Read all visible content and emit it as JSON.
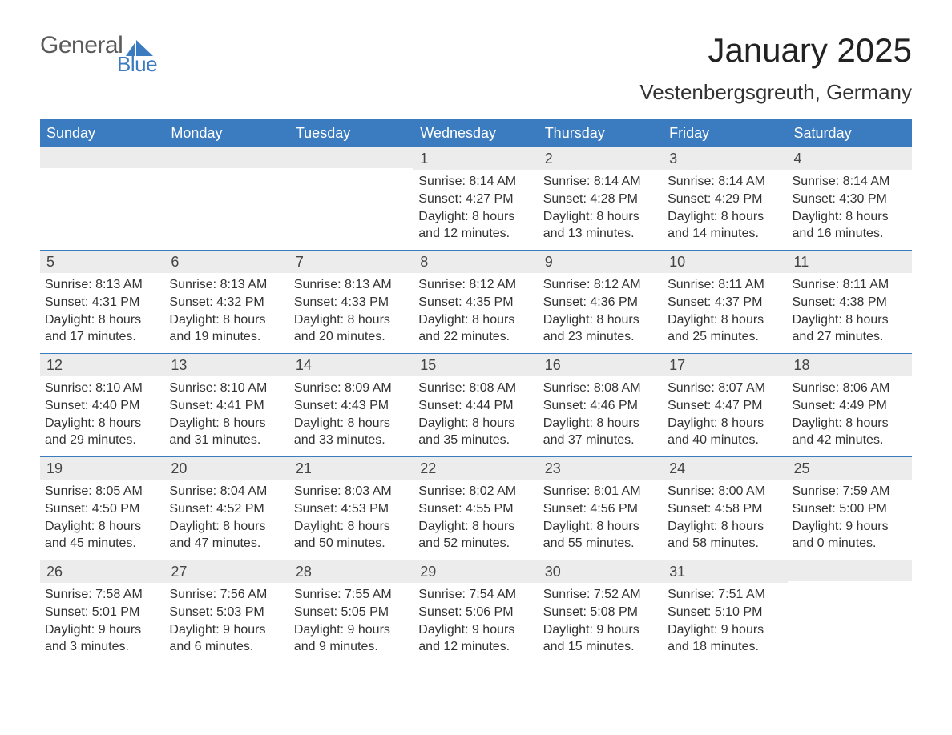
{
  "logo": {
    "text1": "General",
    "text2": "Blue"
  },
  "title": "January 2025",
  "location": "Vestenbergsgreuth, Germany",
  "colors": {
    "header_bg": "#3b7bbf",
    "header_text": "#ffffff",
    "daynum_bg": "#ececec",
    "text": "#333333",
    "border": "#3b7bbf",
    "page_bg": "#ffffff"
  },
  "day_headers": [
    "Sunday",
    "Monday",
    "Tuesday",
    "Wednesday",
    "Thursday",
    "Friday",
    "Saturday"
  ],
  "weeks": [
    [
      {
        "empty": true
      },
      {
        "empty": true
      },
      {
        "empty": true
      },
      {
        "num": "1",
        "sunrise": "Sunrise: 8:14 AM",
        "sunset": "Sunset: 4:27 PM",
        "daylight1": "Daylight: 8 hours",
        "daylight2": "and 12 minutes."
      },
      {
        "num": "2",
        "sunrise": "Sunrise: 8:14 AM",
        "sunset": "Sunset: 4:28 PM",
        "daylight1": "Daylight: 8 hours",
        "daylight2": "and 13 minutes."
      },
      {
        "num": "3",
        "sunrise": "Sunrise: 8:14 AM",
        "sunset": "Sunset: 4:29 PM",
        "daylight1": "Daylight: 8 hours",
        "daylight2": "and 14 minutes."
      },
      {
        "num": "4",
        "sunrise": "Sunrise: 8:14 AM",
        "sunset": "Sunset: 4:30 PM",
        "daylight1": "Daylight: 8 hours",
        "daylight2": "and 16 minutes."
      }
    ],
    [
      {
        "num": "5",
        "sunrise": "Sunrise: 8:13 AM",
        "sunset": "Sunset: 4:31 PM",
        "daylight1": "Daylight: 8 hours",
        "daylight2": "and 17 minutes."
      },
      {
        "num": "6",
        "sunrise": "Sunrise: 8:13 AM",
        "sunset": "Sunset: 4:32 PM",
        "daylight1": "Daylight: 8 hours",
        "daylight2": "and 19 minutes."
      },
      {
        "num": "7",
        "sunrise": "Sunrise: 8:13 AM",
        "sunset": "Sunset: 4:33 PM",
        "daylight1": "Daylight: 8 hours",
        "daylight2": "and 20 minutes."
      },
      {
        "num": "8",
        "sunrise": "Sunrise: 8:12 AM",
        "sunset": "Sunset: 4:35 PM",
        "daylight1": "Daylight: 8 hours",
        "daylight2": "and 22 minutes."
      },
      {
        "num": "9",
        "sunrise": "Sunrise: 8:12 AM",
        "sunset": "Sunset: 4:36 PM",
        "daylight1": "Daylight: 8 hours",
        "daylight2": "and 23 minutes."
      },
      {
        "num": "10",
        "sunrise": "Sunrise: 8:11 AM",
        "sunset": "Sunset: 4:37 PM",
        "daylight1": "Daylight: 8 hours",
        "daylight2": "and 25 minutes."
      },
      {
        "num": "11",
        "sunrise": "Sunrise: 8:11 AM",
        "sunset": "Sunset: 4:38 PM",
        "daylight1": "Daylight: 8 hours",
        "daylight2": "and 27 minutes."
      }
    ],
    [
      {
        "num": "12",
        "sunrise": "Sunrise: 8:10 AM",
        "sunset": "Sunset: 4:40 PM",
        "daylight1": "Daylight: 8 hours",
        "daylight2": "and 29 minutes."
      },
      {
        "num": "13",
        "sunrise": "Sunrise: 8:10 AM",
        "sunset": "Sunset: 4:41 PM",
        "daylight1": "Daylight: 8 hours",
        "daylight2": "and 31 minutes."
      },
      {
        "num": "14",
        "sunrise": "Sunrise: 8:09 AM",
        "sunset": "Sunset: 4:43 PM",
        "daylight1": "Daylight: 8 hours",
        "daylight2": "and 33 minutes."
      },
      {
        "num": "15",
        "sunrise": "Sunrise: 8:08 AM",
        "sunset": "Sunset: 4:44 PM",
        "daylight1": "Daylight: 8 hours",
        "daylight2": "and 35 minutes."
      },
      {
        "num": "16",
        "sunrise": "Sunrise: 8:08 AM",
        "sunset": "Sunset: 4:46 PM",
        "daylight1": "Daylight: 8 hours",
        "daylight2": "and 37 minutes."
      },
      {
        "num": "17",
        "sunrise": "Sunrise: 8:07 AM",
        "sunset": "Sunset: 4:47 PM",
        "daylight1": "Daylight: 8 hours",
        "daylight2": "and 40 minutes."
      },
      {
        "num": "18",
        "sunrise": "Sunrise: 8:06 AM",
        "sunset": "Sunset: 4:49 PM",
        "daylight1": "Daylight: 8 hours",
        "daylight2": "and 42 minutes."
      }
    ],
    [
      {
        "num": "19",
        "sunrise": "Sunrise: 8:05 AM",
        "sunset": "Sunset: 4:50 PM",
        "daylight1": "Daylight: 8 hours",
        "daylight2": "and 45 minutes."
      },
      {
        "num": "20",
        "sunrise": "Sunrise: 8:04 AM",
        "sunset": "Sunset: 4:52 PM",
        "daylight1": "Daylight: 8 hours",
        "daylight2": "and 47 minutes."
      },
      {
        "num": "21",
        "sunrise": "Sunrise: 8:03 AM",
        "sunset": "Sunset: 4:53 PM",
        "daylight1": "Daylight: 8 hours",
        "daylight2": "and 50 minutes."
      },
      {
        "num": "22",
        "sunrise": "Sunrise: 8:02 AM",
        "sunset": "Sunset: 4:55 PM",
        "daylight1": "Daylight: 8 hours",
        "daylight2": "and 52 minutes."
      },
      {
        "num": "23",
        "sunrise": "Sunrise: 8:01 AM",
        "sunset": "Sunset: 4:56 PM",
        "daylight1": "Daylight: 8 hours",
        "daylight2": "and 55 minutes."
      },
      {
        "num": "24",
        "sunrise": "Sunrise: 8:00 AM",
        "sunset": "Sunset: 4:58 PM",
        "daylight1": "Daylight: 8 hours",
        "daylight2": "and 58 minutes."
      },
      {
        "num": "25",
        "sunrise": "Sunrise: 7:59 AM",
        "sunset": "Sunset: 5:00 PM",
        "daylight1": "Daylight: 9 hours",
        "daylight2": "and 0 minutes."
      }
    ],
    [
      {
        "num": "26",
        "sunrise": "Sunrise: 7:58 AM",
        "sunset": "Sunset: 5:01 PM",
        "daylight1": "Daylight: 9 hours",
        "daylight2": "and 3 minutes."
      },
      {
        "num": "27",
        "sunrise": "Sunrise: 7:56 AM",
        "sunset": "Sunset: 5:03 PM",
        "daylight1": "Daylight: 9 hours",
        "daylight2": "and 6 minutes."
      },
      {
        "num": "28",
        "sunrise": "Sunrise: 7:55 AM",
        "sunset": "Sunset: 5:05 PM",
        "daylight1": "Daylight: 9 hours",
        "daylight2": "and 9 minutes."
      },
      {
        "num": "29",
        "sunrise": "Sunrise: 7:54 AM",
        "sunset": "Sunset: 5:06 PM",
        "daylight1": "Daylight: 9 hours",
        "daylight2": "and 12 minutes."
      },
      {
        "num": "30",
        "sunrise": "Sunrise: 7:52 AM",
        "sunset": "Sunset: 5:08 PM",
        "daylight1": "Daylight: 9 hours",
        "daylight2": "and 15 minutes."
      },
      {
        "num": "31",
        "sunrise": "Sunrise: 7:51 AM",
        "sunset": "Sunset: 5:10 PM",
        "daylight1": "Daylight: 9 hours",
        "daylight2": "and 18 minutes."
      },
      {
        "empty": true
      }
    ]
  ]
}
